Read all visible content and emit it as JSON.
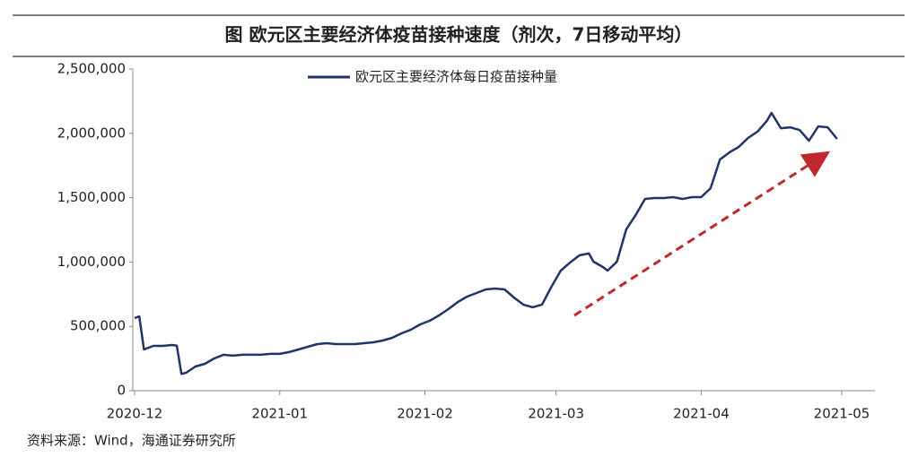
{
  "chart_data": {
    "type": "line",
    "title": "图  欧元区主要经济体疫苗接种速度（剂次，7日移动平均）",
    "source": "资料来源：Wind，海通证券研究所",
    "x": [
      0,
      1,
      2,
      4,
      6,
      8,
      9,
      10,
      11,
      13,
      15,
      17,
      19,
      21,
      23,
      25,
      27,
      29,
      31,
      33,
      35,
      37,
      39,
      41,
      43,
      45,
      47,
      49,
      51,
      53,
      55,
      57,
      59,
      61,
      63,
      65,
      67,
      69,
      71,
      73,
      75,
      77,
      79,
      81,
      83,
      85,
      87,
      89,
      91,
      93,
      95,
      97,
      98,
      100,
      101,
      103,
      105,
      107,
      109,
      111,
      113,
      115,
      117,
      119,
      121,
      123,
      125,
      127,
      129,
      131,
      133,
      135,
      136,
      138,
      140,
      142,
      144,
      146,
      148,
      150
    ],
    "series": [
      {
        "name": "欧元区主要经济体每日疫苗接种量",
        "color": "#1f3468",
        "values": [
          564000,
          578000,
          320000,
          348000,
          348000,
          355000,
          350000,
          130000,
          139000,
          188000,
          209000,
          251000,
          279000,
          272000,
          279000,
          279000,
          279000,
          286000,
          286000,
          300000,
          320000,
          341000,
          362000,
          369000,
          362000,
          362000,
          362000,
          369000,
          376000,
          390000,
          411000,
          446000,
          474000,
          515000,
          543000,
          585000,
          634000,
          689000,
          731000,
          759000,
          787000,
          794000,
          787000,
          724000,
          669000,
          648000,
          669000,
          808000,
          933000,
          996000,
          1052000,
          1066000,
          1003000,
          961000,
          933000,
          1003000,
          1254000,
          1365000,
          1490000,
          1497000,
          1497000,
          1504000,
          1490000,
          1504000,
          1504000,
          1574000,
          1797000,
          1852000,
          1894000,
          1964000,
          2013000,
          2096000,
          2159000,
          2040000,
          2047000,
          2026000,
          1943000,
          2054000,
          2047000,
          1957000
        ]
      }
    ],
    "xlim": [
      0,
      151
    ],
    "xticks": [
      {
        "value": 0,
        "label": "2020-12"
      },
      {
        "value": 31,
        "label": "2021-01"
      },
      {
        "value": 62,
        "label": "2021-02"
      },
      {
        "value": 90,
        "label": "2021-03"
      },
      {
        "value": 121,
        "label": "2021-04"
      },
      {
        "value": 151,
        "label": "2021-05"
      }
    ],
    "ylim": [
      0,
      2500000
    ],
    "yticks": [
      0,
      {
        "value": 500000,
        "label": "500,000"
      },
      {
        "value": 1000000,
        "label": "1,000,000"
      },
      {
        "value": 1500000,
        "label": "1,500,000"
      },
      {
        "value": 2000000,
        "label": "2,000,000"
      },
      {
        "value": 2500000,
        "label": "2,500,000"
      }
    ],
    "grid": false
  }
}
